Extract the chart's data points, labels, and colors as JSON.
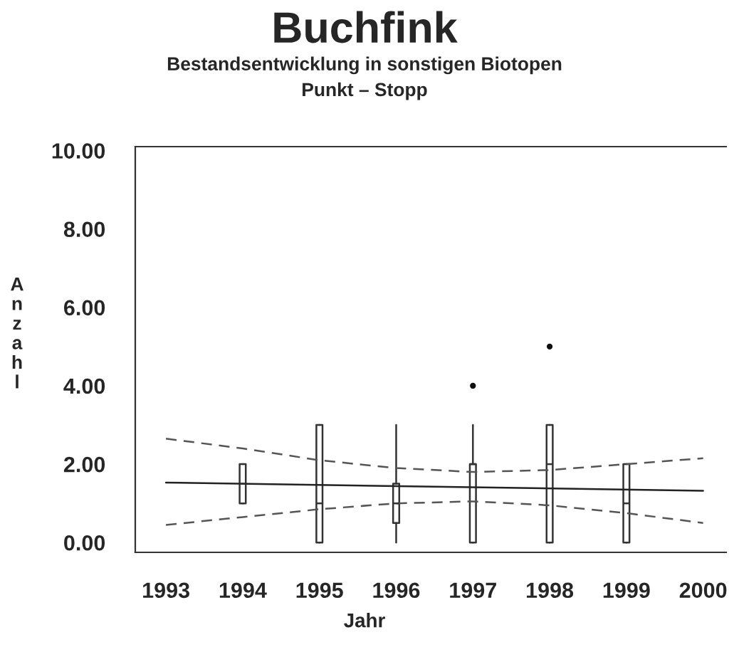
{
  "chart_data": {
    "type": "box",
    "title": "Buchfink",
    "subtitle": "Bestandsentwicklung in sonstigen Biotopen\nPunkt – Stopp",
    "xlabel": "Jahr",
    "ylabel": "Anzahl",
    "x": [
      1994,
      1995,
      1996,
      1997,
      1998,
      1999
    ],
    "boxes": [
      {
        "low": 1,
        "q1": 1,
        "median": 1.5,
        "q3": 2,
        "high": 2
      },
      {
        "low": 0,
        "q1": 0,
        "median": 1,
        "q3": 3,
        "high": 3
      },
      {
        "low": 0,
        "q1": 0.5,
        "median": 1,
        "q3": 1.5,
        "high": 3
      },
      {
        "low": 0,
        "q1": 0,
        "median": 2,
        "q3": 2,
        "high": 3,
        "outliers": [
          4
        ]
      },
      {
        "low": 0,
        "q1": 0,
        "median": 2,
        "q3": 3,
        "high": 3,
        "outliers": [
          5
        ]
      },
      {
        "low": 0,
        "q1": 0,
        "median": 1,
        "q3": 2,
        "high": 2
      }
    ],
    "series": [
      {
        "type": "line",
        "color": "#222222",
        "line_style": "solid",
        "x": [
          1993,
          2000
        ],
        "values": [
          1.53,
          1.32
        ]
      },
      {
        "type": "line",
        "color": "#555555",
        "line_style": "dashed",
        "x": [
          1993,
          1994,
          1995,
          1996,
          1997,
          1998,
          1999,
          2000
        ],
        "values": [
          2.65,
          2.4,
          2.1,
          1.9,
          1.8,
          1.85,
          2.0,
          2.15
        ]
      },
      {
        "type": "line",
        "color": "#555555",
        "line_style": "dashed",
        "x": [
          1993,
          1994,
          1995,
          1996,
          1997,
          1998,
          1999,
          2000
        ],
        "values": [
          0.45,
          0.65,
          0.85,
          1.0,
          1.05,
          0.95,
          0.75,
          0.5
        ]
      }
    ],
    "xlim": [
      1992.6,
      2000.3
    ],
    "xticks": [
      1993,
      1994,
      1995,
      1996,
      1997,
      1998,
      1999,
      2000
    ],
    "ylim": [
      -0.25,
      10.1
    ],
    "yticks": [
      {
        "value": 0,
        "label": "0.00"
      },
      {
        "value": 2,
        "label": "2.00"
      },
      {
        "value": 4,
        "label": "4.00"
      },
      {
        "value": 6,
        "label": "6.00"
      },
      {
        "value": 8,
        "label": "8.00"
      },
      {
        "value": 10,
        "label": "10.00"
      }
    ],
    "grid": false,
    "legend": false
  }
}
